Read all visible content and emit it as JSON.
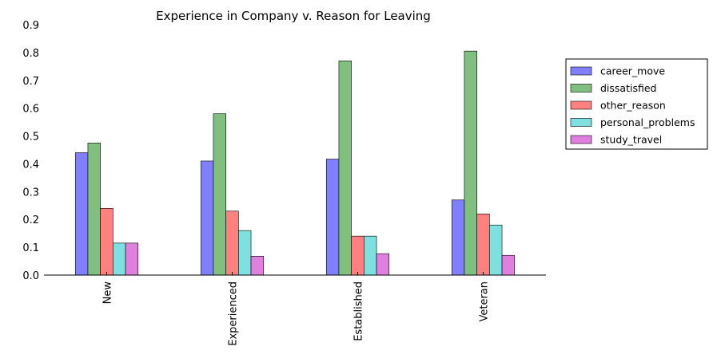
{
  "chart_data": {
    "type": "bar",
    "title": "Experience in Company v. Reason for Leaving",
    "xlabel": "",
    "ylabel": "",
    "categories": [
      "New",
      "Experienced",
      "Established",
      "Veteran"
    ],
    "ylim": [
      0,
      0.9
    ],
    "yticks": [
      "0.0",
      "0.1",
      "0.2",
      "0.3",
      "0.4",
      "0.5",
      "0.6",
      "0.7",
      "0.8",
      "0.9"
    ],
    "grid": false,
    "legend_position": "right",
    "series": [
      {
        "name": "career_move",
        "color": "#8080ff",
        "values": [
          0.44,
          0.41,
          0.417,
          0.27
        ]
      },
      {
        "name": "dissatisfied",
        "color": "#80bf80",
        "values": [
          0.475,
          0.58,
          0.77,
          0.805
        ]
      },
      {
        "name": "other_reason",
        "color": "#ff8080",
        "values": [
          0.24,
          0.23,
          0.14,
          0.22
        ]
      },
      {
        "name": "personal_problems",
        "color": "#80dfdf",
        "values": [
          0.115,
          0.16,
          0.14,
          0.18
        ]
      },
      {
        "name": "study_travel",
        "color": "#df80df",
        "values": [
          0.115,
          0.068,
          0.077,
          0.071
        ]
      }
    ]
  }
}
